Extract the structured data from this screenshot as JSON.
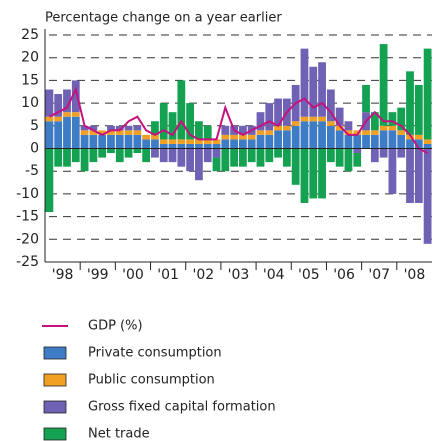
{
  "chart_data": {
    "type": "bar",
    "title": "Percentage change on a year earlier",
    "categories": [
      "'98",
      null,
      null,
      null,
      "'99",
      null,
      null,
      null,
      "'00",
      null,
      null,
      null,
      "'01",
      null,
      null,
      null,
      "'02",
      null,
      null,
      null,
      "'03",
      null,
      null,
      null,
      "'04",
      null,
      null,
      null,
      "'05",
      null,
      null,
      null,
      "'06",
      null,
      null,
      null,
      "'07",
      null,
      null,
      null,
      "'08",
      null,
      null,
      null
    ],
    "ylim": [
      -25,
      25
    ],
    "yticks": [
      25,
      20,
      15,
      10,
      5,
      0,
      -5,
      -10,
      -15,
      -20,
      -25
    ],
    "grid": true,
    "series": [
      {
        "name": "Private consumption",
        "color": "#3f7cc6",
        "values": [
          6,
          6,
          7,
          7,
          3,
          3,
          3,
          3,
          3,
          3,
          3,
          2,
          2,
          1,
          1,
          1,
          1,
          1,
          1,
          1,
          2,
          2,
          2,
          2,
          3,
          3,
          4,
          4,
          5,
          6,
          6,
          6,
          5,
          4,
          3,
          3,
          3,
          3,
          4,
          4,
          3,
          2,
          2,
          1
        ]
      },
      {
        "name": "Public consumption",
        "color": "#f2a024",
        "values": [
          1,
          1,
          1,
          1,
          1,
          1,
          1,
          1,
          1,
          1,
          1,
          1,
          1,
          1,
          1,
          1,
          1,
          1,
          1,
          1,
          1,
          1,
          1,
          1,
          1,
          1,
          1,
          1,
          1,
          1,
          1,
          1,
          1,
          1,
          1,
          1,
          1,
          1,
          1,
          1,
          1,
          1,
          1,
          1
        ]
      },
      {
        "name": "Gross fixed capital formation",
        "color": "#6f62b4",
        "values": [
          6,
          5,
          5,
          7,
          1,
          1,
          0,
          1,
          1,
          1,
          1,
          0,
          -2,
          -3,
          -3,
          -4,
          -5,
          -7,
          -3,
          -2,
          2,
          2,
          2,
          2,
          4,
          6,
          6,
          6,
          8,
          15,
          11,
          12,
          7,
          4,
          2,
          -1,
          4,
          -3,
          -2,
          -10,
          -2,
          -12,
          -12,
          -21
        ]
      },
      {
        "name": "Net trade",
        "color": "#14a152",
        "values": [
          -14,
          -4,
          -4,
          -3,
          -5,
          -3,
          -2,
          -1,
          -3,
          -2,
          -1,
          -3,
          3,
          8,
          6,
          13,
          8,
          4,
          3,
          -3,
          -5,
          -4,
          -4,
          -3,
          -4,
          -3,
          -2,
          -4,
          -8,
          -12,
          -11,
          -11,
          -3,
          -4,
          -5,
          -3,
          6,
          4,
          18,
          3,
          5,
          14,
          11,
          20
        ]
      },
      {
        "name": "GDP (%)",
        "type": "line",
        "color": "#c4127e",
        "values": [
          7,
          8,
          9,
          13,
          5,
          4,
          3,
          4,
          4,
          6,
          7,
          4,
          3,
          4,
          3,
          6,
          3,
          2,
          2,
          2,
          9,
          4,
          3,
          4,
          5,
          6,
          5,
          8,
          10,
          11,
          9,
          10,
          8,
          5,
          3,
          3,
          6,
          8,
          6,
          6,
          5,
          3,
          0,
          -1
        ]
      }
    ]
  }
}
